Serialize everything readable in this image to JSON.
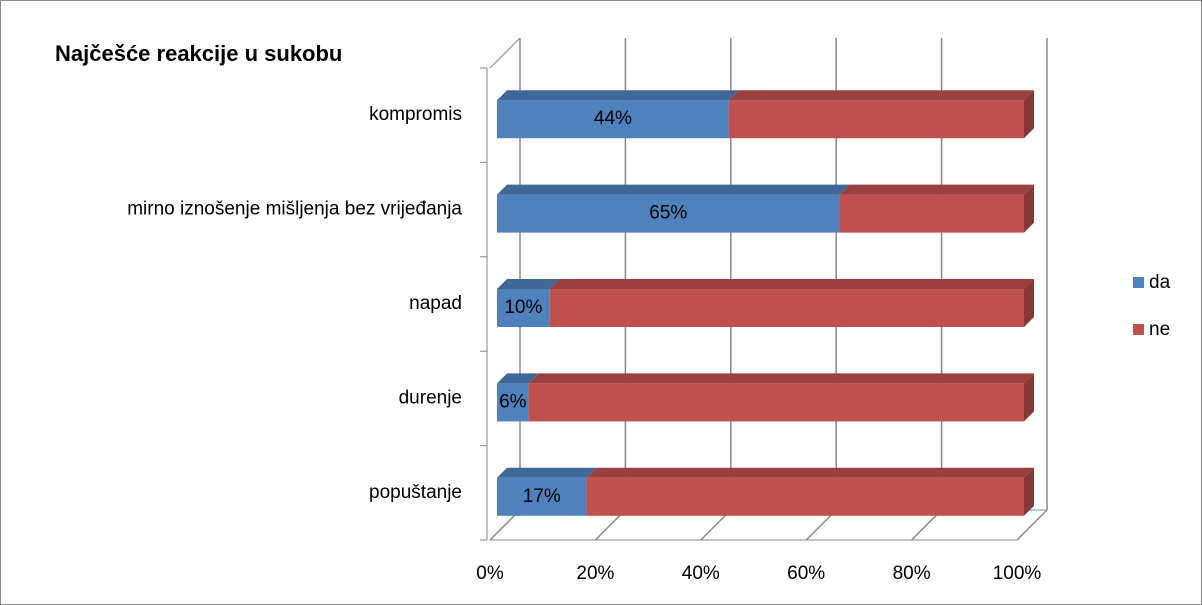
{
  "chart_data": {
    "type": "bar",
    "orientation": "horizontal",
    "stacked": true,
    "title": "Najčešće reakcije u sukobu",
    "categories": [
      "kompromis",
      "mirno iznošenje mišljenja bez vrijeđanja",
      "napad",
      "durenje",
      "popuštanje"
    ],
    "series": [
      {
        "name": "da",
        "color": "#4f81bd",
        "values": [
          44,
          65,
          10,
          6,
          17
        ],
        "value_labels": [
          "44%",
          "65%",
          "10%",
          "6%",
          "17%"
        ]
      },
      {
        "name": "ne",
        "color": "#c0504d",
        "values": [
          56,
          35,
          90,
          94,
          83
        ]
      }
    ],
    "xlim": [
      0,
      100
    ],
    "xticks": [
      {
        "value": 0,
        "label": "0%"
      },
      {
        "value": 20,
        "label": "20%"
      },
      {
        "value": 40,
        "label": "40%"
      },
      {
        "value": 60,
        "label": "60%"
      },
      {
        "value": 80,
        "label": "80%"
      },
      {
        "value": 100,
        "label": "100%"
      }
    ],
    "grid": true,
    "legend": "right"
  }
}
